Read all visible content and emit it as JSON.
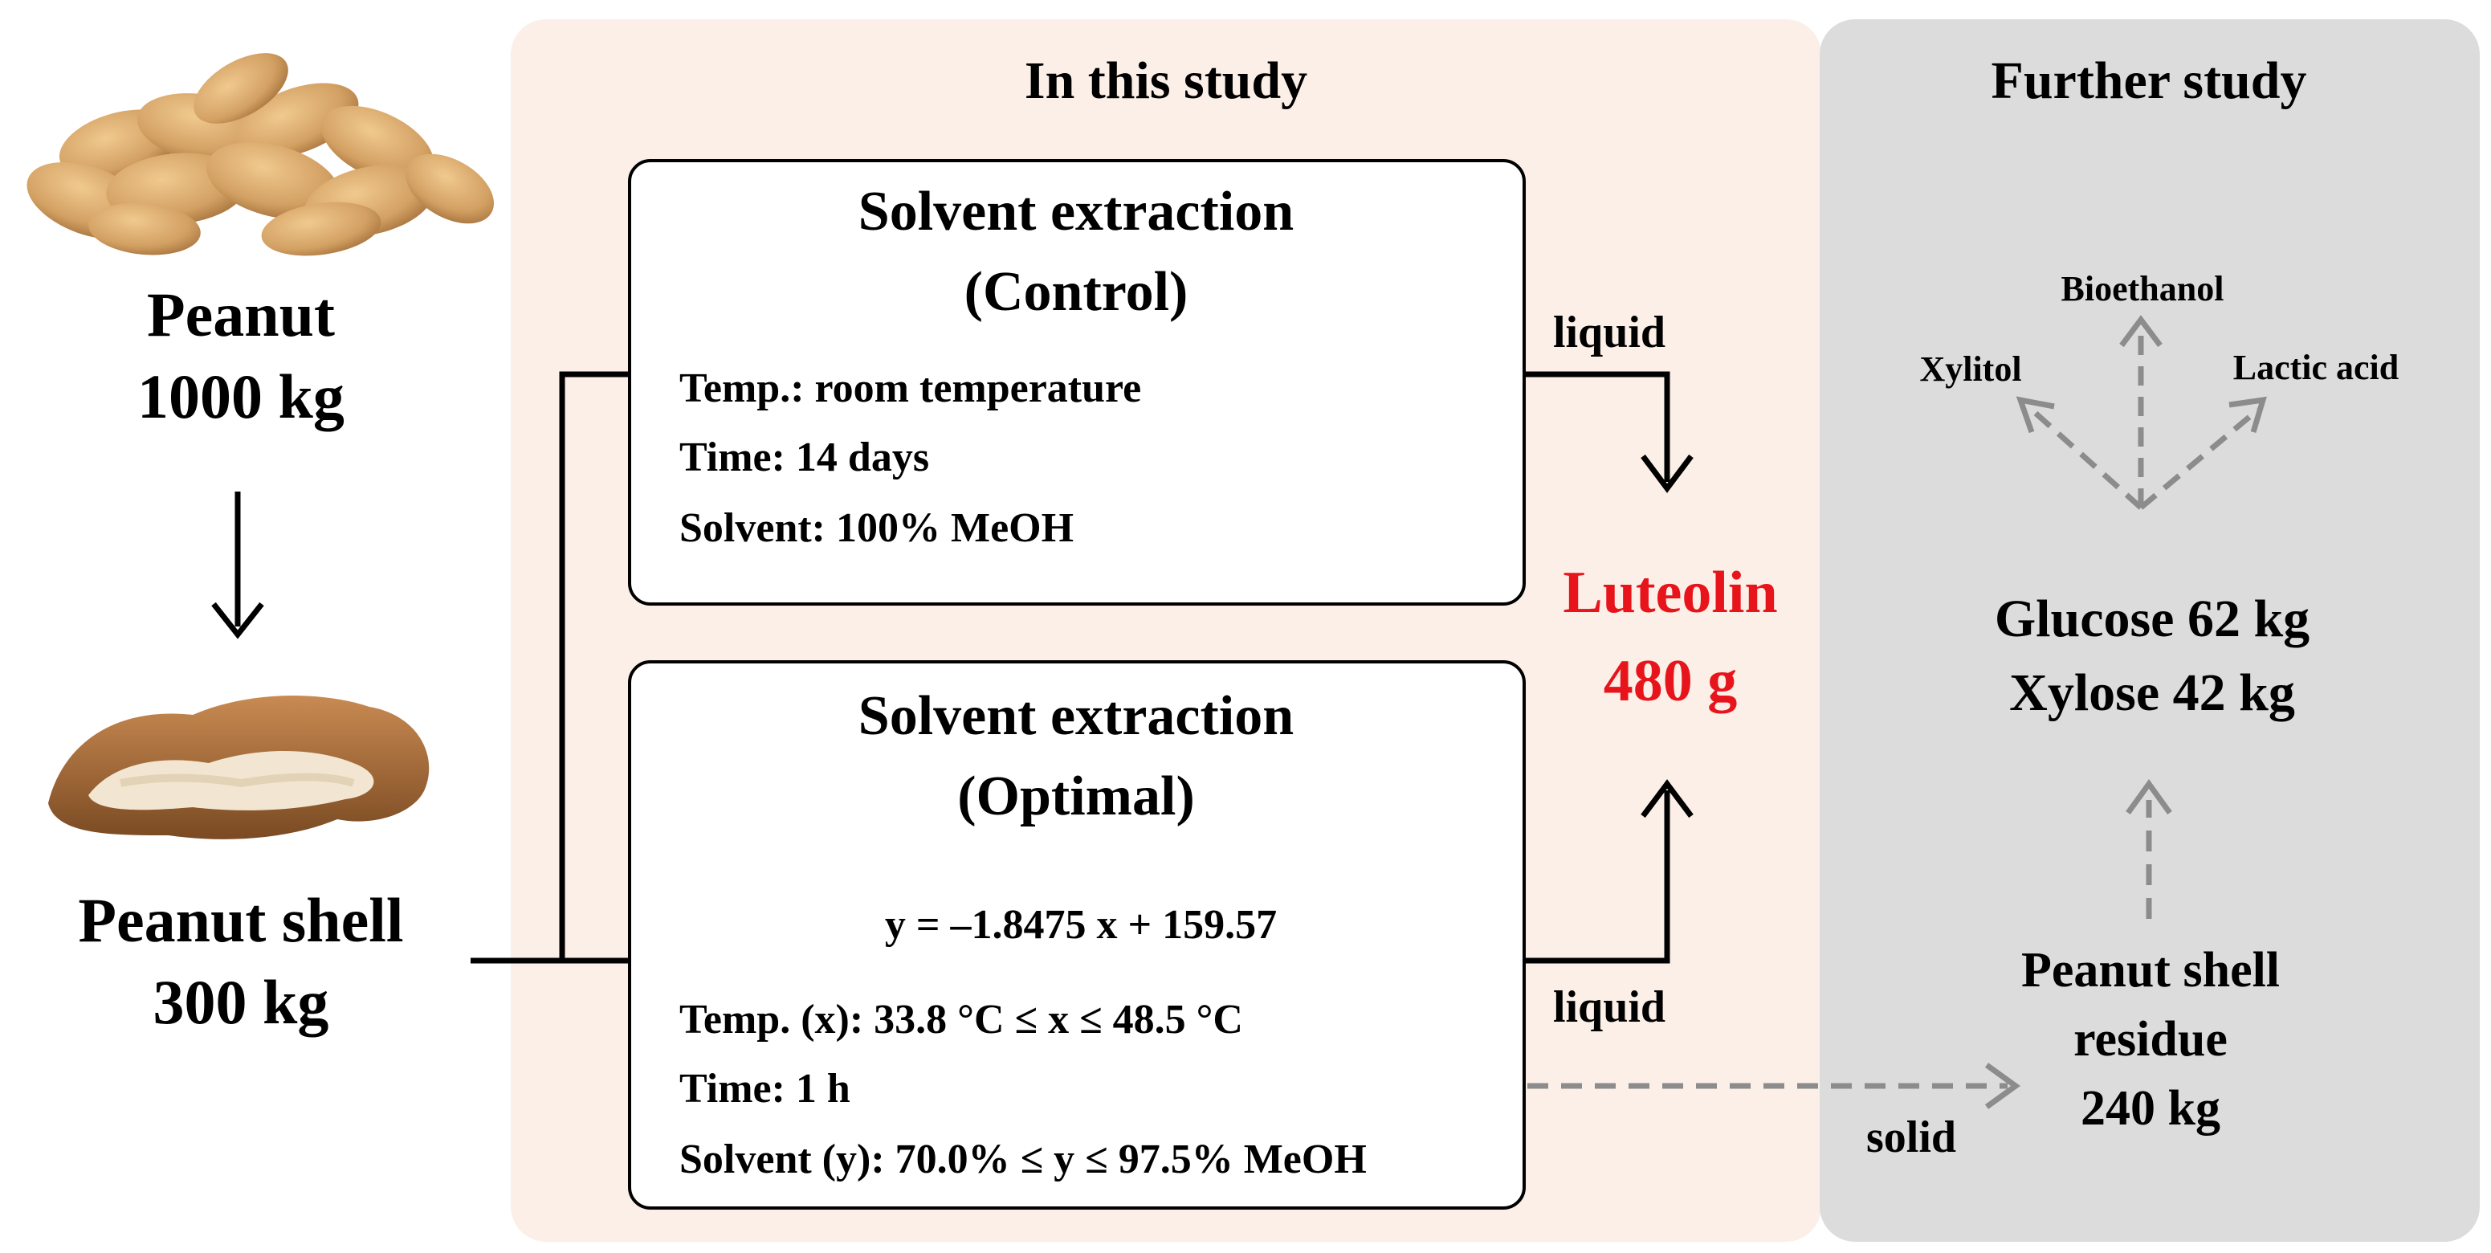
{
  "colors": {
    "study_panel": "#fbefe7",
    "further_panel": "#dcdcdc",
    "box_border": "#000000",
    "flow_arrow": "#000000",
    "dashed_arrow": "#8c8c8c",
    "product_highlight": "#e8141b"
  },
  "left": {
    "peanut_image": "peanut-pods-photo",
    "peanut": {
      "name": "Peanut",
      "amount": "1000 kg"
    },
    "shell_image": "peanut-shell-photo",
    "shell": {
      "name": "Peanut shell",
      "amount": "300 kg"
    }
  },
  "study": {
    "title": "In this study",
    "control": {
      "title": "Solvent extraction",
      "subtitle": "(Control)",
      "conditions": [
        "Temp.: room temperature",
        "Time: 14 days",
        "Solvent: 100% MeOH"
      ]
    },
    "optimal": {
      "title": "Solvent extraction",
      "subtitle": "(Optimal)",
      "equation": "y = –1.8475 x + 159.57",
      "conditions": [
        "Temp. (x): 33.8 °C ≤ x ≤ 48.5 °C",
        "Time: 1 h",
        "Solvent (y): 70.0% ≤ y ≤ 97.5% MeOH"
      ]
    },
    "liquid_label_top": "liquid",
    "liquid_label_bottom": "liquid",
    "solid_label": "solid",
    "product": {
      "name": "Luteolin",
      "amount": "480 g"
    }
  },
  "further": {
    "title": "Further study",
    "products": [
      "Bioethanol",
      "Xylitol",
      "Lactic acid"
    ],
    "sugars": [
      "Glucose 62 kg",
      "Xylose 42 kg"
    ],
    "residue": [
      "Peanut shell",
      "residue",
      "240 kg"
    ]
  }
}
